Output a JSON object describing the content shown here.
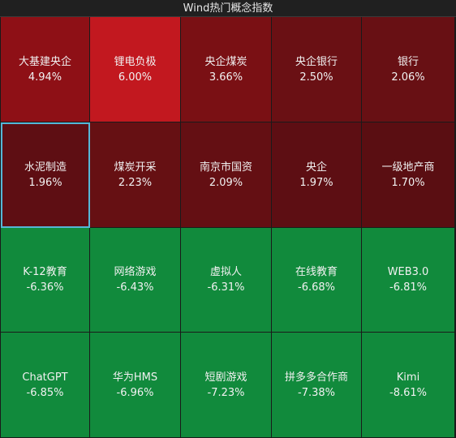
{
  "header": {
    "title": "Wind热门概念指数"
  },
  "tiles": [
    {
      "name": "大基建央企",
      "change": "4.94%",
      "color": "#8e1016"
    },
    {
      "name": "锂电负极",
      "change": "6.00%",
      "color": "#c2181f"
    },
    {
      "name": "央企煤炭",
      "change": "3.66%",
      "color": "#7a1014"
    },
    {
      "name": "央企银行",
      "change": "2.50%",
      "color": "#6a1014"
    },
    {
      "name": "银行",
      "change": "2.06%",
      "color": "#681014"
    },
    {
      "name": "水泥制造",
      "change": "1.96%",
      "color": "#5e0e13",
      "selected": true
    },
    {
      "name": "煤炭开采",
      "change": "2.23%",
      "color": "#661013"
    },
    {
      "name": "南京市国资",
      "change": "2.09%",
      "color": "#640f13"
    },
    {
      "name": "央企",
      "change": "1.97%",
      "color": "#5d0e13"
    },
    {
      "name": "一级地产商",
      "change": "1.70%",
      "color": "#5a0e12"
    },
    {
      "name": "K-12教育",
      "change": "-6.36%",
      "color": "#118a3c"
    },
    {
      "name": "网络游戏",
      "change": "-6.43%",
      "color": "#118a3c"
    },
    {
      "name": "虚拟人",
      "change": "-6.31%",
      "color": "#118a3c"
    },
    {
      "name": "在线教育",
      "change": "-6.68%",
      "color": "#118a3c"
    },
    {
      "name": "WEB3.0",
      "change": "-6.81%",
      "color": "#118a3c"
    },
    {
      "name": "ChatGPT",
      "change": "-6.85%",
      "color": "#118a3c"
    },
    {
      "name": "华为HMS",
      "change": "-6.96%",
      "color": "#118a3c"
    },
    {
      "name": "短剧游戏",
      "change": "-7.23%",
      "color": "#118a3c"
    },
    {
      "name": "拼多多合作商",
      "change": "-7.38%",
      "color": "#118a3c"
    },
    {
      "name": "Kimi",
      "change": "-8.61%",
      "color": "#118a3c"
    }
  ]
}
